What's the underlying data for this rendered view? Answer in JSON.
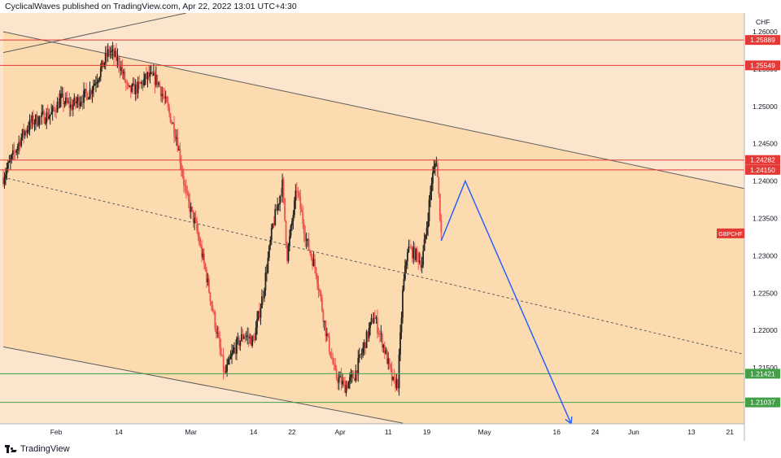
{
  "header": {
    "publisher_line": "CyclicalWaves published on TradingView.com, Apr 22, 2022 13:01 UTC+4:30"
  },
  "footer": {
    "brand": "TradingView",
    "logo_icon": "tradingview-logo-icon"
  },
  "chart_data": {
    "type": "candlestick",
    "symbol_label": "GBPCHF",
    "currency_label": "CHF",
    "y_axis": {
      "range": [
        1.2075,
        1.2625
      ],
      "ticks": [
        "1.26000",
        "1.25500",
        "1.25000",
        "1.24500",
        "1.24000",
        "1.23500",
        "1.23000",
        "1.22500",
        "1.22000",
        "1.21500"
      ]
    },
    "x_axis": {
      "ticks": [
        {
          "label": "Feb",
          "date": "2022-02-01"
        },
        {
          "label": "14",
          "date": "2022-02-14"
        },
        {
          "label": "Mar",
          "date": "2022-03-01"
        },
        {
          "label": "14",
          "date": "2022-03-14"
        },
        {
          "label": "22",
          "date": "2022-03-22"
        },
        {
          "label": "Apr",
          "date": "2022-04-01"
        },
        {
          "label": "11",
          "date": "2022-04-11"
        },
        {
          "label": "19",
          "date": "2022-04-19"
        },
        {
          "label": "May",
          "date": "2022-05-01"
        },
        {
          "label": "16",
          "date": "2022-05-16"
        },
        {
          "label": "24",
          "date": "2022-05-24"
        },
        {
          "label": "Jun",
          "date": "2022-06-01"
        },
        {
          "label": "13",
          "date": "2022-06-13"
        },
        {
          "label": "21",
          "date": "2022-06-21"
        }
      ]
    },
    "horizontal_levels": [
      {
        "value": 1.25889,
        "label": "1.25889",
        "color": "#e53935"
      },
      {
        "value": 1.25549,
        "label": "1.25549",
        "color": "#e53935"
      },
      {
        "value": 1.24282,
        "label": "1.24282",
        "color": "#e53935"
      },
      {
        "value": 1.2415,
        "label": "1.24150",
        "color": "#e53935"
      },
      {
        "value": 1.21421,
        "label": "1.21421",
        "color": "#43a047"
      },
      {
        "value": 1.21037,
        "label": "1.21037",
        "color": "#43a047"
      }
    ],
    "channel": {
      "upper": [
        {
          "date": "2022-01-21",
          "value": 1.26
        },
        {
          "date": "2022-06-24",
          "value": 1.239
        }
      ],
      "middle": [
        {
          "date": "2022-01-21",
          "value": 1.2405
        },
        {
          "date": "2022-06-24",
          "value": 1.2168
        }
      ],
      "lower": [
        {
          "date": "2022-01-21",
          "value": 1.2178
        },
        {
          "date": "2022-04-14",
          "value": 1.2076
        }
      ],
      "extra_line": [
        {
          "date": "2022-01-21",
          "value": 1.2572
        },
        {
          "date": "2022-02-28",
          "value": 1.2625
        }
      ]
    },
    "projection": [
      {
        "date": "2022-04-22",
        "value": 1.232
      },
      {
        "date": "2022-04-27",
        "value": 1.24
      },
      {
        "date": "2022-05-19",
        "value": 1.2075
      }
    ],
    "price_path": [
      {
        "date": "2022-01-21",
        "value": 1.2405
      },
      {
        "date": "2022-01-25",
        "value": 1.2462
      },
      {
        "date": "2022-01-27",
        "value": 1.248
      },
      {
        "date": "2022-01-31",
        "value": 1.249
      },
      {
        "date": "2022-02-02",
        "value": 1.251
      },
      {
        "date": "2022-02-04",
        "value": 1.25
      },
      {
        "date": "2022-02-08",
        "value": 1.252
      },
      {
        "date": "2022-02-10",
        "value": 1.2545
      },
      {
        "date": "2022-02-12",
        "value": 1.2575
      },
      {
        "date": "2022-02-14",
        "value": 1.256
      },
      {
        "date": "2022-02-16",
        "value": 1.252
      },
      {
        "date": "2022-02-18",
        "value": 1.2525
      },
      {
        "date": "2022-02-20",
        "value": 1.254
      },
      {
        "date": "2022-02-22",
        "value": 1.2535
      },
      {
        "date": "2022-02-24",
        "value": 1.25
      },
      {
        "date": "2022-02-26",
        "value": 1.246
      },
      {
        "date": "2022-02-28",
        "value": 1.238
      },
      {
        "date": "2022-03-02",
        "value": 1.234
      },
      {
        "date": "2022-03-04",
        "value": 1.228
      },
      {
        "date": "2022-03-06",
        "value": 1.221
      },
      {
        "date": "2022-03-08",
        "value": 1.214
      },
      {
        "date": "2022-03-10",
        "value": 1.2175
      },
      {
        "date": "2022-03-12",
        "value": 1.2195
      },
      {
        "date": "2022-03-14",
        "value": 1.2185
      },
      {
        "date": "2022-03-16",
        "value": 1.225
      },
      {
        "date": "2022-03-18",
        "value": 1.234
      },
      {
        "date": "2022-03-20",
        "value": 1.2395
      },
      {
        "date": "2022-03-21",
        "value": 1.23
      },
      {
        "date": "2022-03-23",
        "value": 1.239
      },
      {
        "date": "2022-03-25",
        "value": 1.232
      },
      {
        "date": "2022-03-27",
        "value": 1.228
      },
      {
        "date": "2022-03-29",
        "value": 1.22
      },
      {
        "date": "2022-03-31",
        "value": 1.214
      },
      {
        "date": "2022-04-02",
        "value": 1.2125
      },
      {
        "date": "2022-04-04",
        "value": 1.214
      },
      {
        "date": "2022-04-06",
        "value": 1.218
      },
      {
        "date": "2022-04-08",
        "value": 1.222
      },
      {
        "date": "2022-04-10",
        "value": 1.218
      },
      {
        "date": "2022-04-12",
        "value": 1.213
      },
      {
        "date": "2022-04-13",
        "value": 1.213
      },
      {
        "date": "2022-04-14",
        "value": 1.225
      },
      {
        "date": "2022-04-15",
        "value": 1.231
      },
      {
        "date": "2022-04-17",
        "value": 1.23
      },
      {
        "date": "2022-04-18",
        "value": 1.229
      },
      {
        "date": "2022-04-19",
        "value": 1.234
      },
      {
        "date": "2022-04-20",
        "value": 1.24
      },
      {
        "date": "2022-04-21",
        "value": 1.243
      },
      {
        "date": "2022-04-22",
        "value": 1.233
      }
    ]
  }
}
